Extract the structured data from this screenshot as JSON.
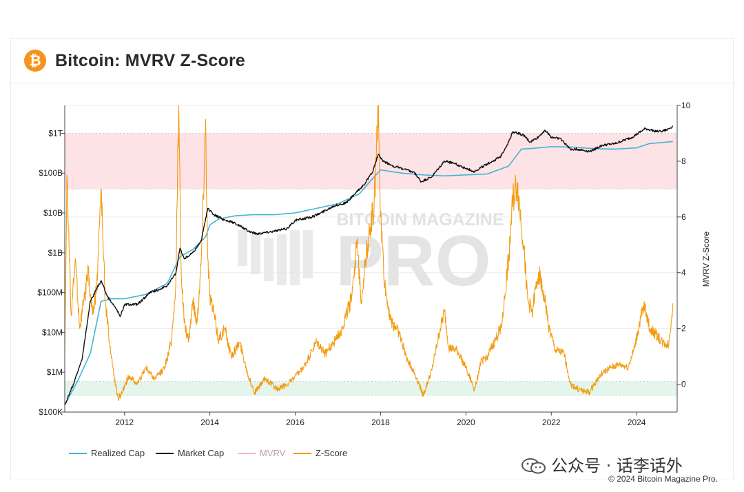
{
  "header": {
    "logo_glyph": "₿",
    "title": "Bitcoin: MVRV Z-Score"
  },
  "watermark": {
    "main": "BITCOIN MAGAZINE",
    "sub": "PRO",
    "social": "公众号 · 话李话外"
  },
  "copyright": "© 2024 Bitcoin Magazine Pro.",
  "colors": {
    "realized": "#3fb6d3",
    "market": "#111111",
    "mvrv": "#f4b6c2",
    "zscore": "#f39c12",
    "top_band": "#fde2e6",
    "bottom_band": "#e3f6ec",
    "accent": "#f7931a"
  },
  "chart_data": {
    "type": "line",
    "xlim": [
      2010.6,
      2024.95
    ],
    "x_ticks": [
      "2012",
      "2014",
      "2016",
      "2018",
      "2020",
      "2022",
      "2024"
    ],
    "left_axis": {
      "scale": "log",
      "ylim": [
        100000,
        5000000000000
      ],
      "ticks": [
        "$100K",
        "$1M",
        "$10M",
        "$100M",
        "$1B",
        "$10B",
        "$100B",
        "$1T"
      ]
    },
    "right_axis": {
      "ylabel": "MVRV Z-Score",
      "ylim": [
        -1,
        10
      ],
      "ticks": [
        "0",
        "2",
        "4",
        "6",
        "8",
        "10"
      ]
    },
    "bands": [
      {
        "name": "overvalued",
        "from": 7,
        "to": 9
      },
      {
        "name": "undervalued",
        "from": -0.4,
        "to": 0.1
      }
    ],
    "legend": [
      {
        "name": "Realized Cap",
        "key": "realized"
      },
      {
        "name": "Market Cap",
        "key": "market"
      },
      {
        "name": "MVRV",
        "key": "mvrv"
      },
      {
        "name": "Z-Score",
        "key": "zscore"
      }
    ],
    "series": [
      {
        "name": "Realized Cap",
        "axis": "left",
        "key": "realized",
        "x": [
          2010.6,
          2010.9,
          2011.2,
          2011.45,
          2011.7,
          2012.0,
          2012.5,
          2013.0,
          2013.3,
          2013.6,
          2013.9,
          2014.0,
          2014.2,
          2014.6,
          2015.0,
          2015.5,
          2016.0,
          2016.5,
          2017.0,
          2017.5,
          2017.8,
          2018.0,
          2018.5,
          2019.0,
          2019.5,
          2020.0,
          2020.5,
          2021.0,
          2021.3,
          2021.6,
          2022.0,
          2022.5,
          2023.0,
          2023.5,
          2024.0,
          2024.3,
          2024.85
        ],
        "y": [
          150000,
          600000,
          3000000,
          60000000,
          70000000,
          70000000,
          90000000,
          170000000,
          800000000,
          1200000000,
          2500000000,
          5000000000,
          7000000000,
          8500000000,
          9000000000,
          9000000000,
          10000000000,
          13000000000,
          17000000000,
          30000000000,
          70000000000,
          120000000000,
          100000000000,
          90000000000,
          85000000000,
          90000000000,
          95000000000,
          150000000000,
          400000000000,
          420000000000,
          460000000000,
          450000000000,
          410000000000,
          400000000000,
          430000000000,
          550000000000,
          620000000000
        ]
      },
      {
        "name": "Market Cap",
        "axis": "left",
        "key": "market",
        "x": [
          2010.6,
          2010.8,
          2011.0,
          2011.2,
          2011.45,
          2011.6,
          2011.8,
          2011.9,
          2012.0,
          2012.3,
          2012.6,
          2012.9,
          2013.0,
          2013.2,
          2013.3,
          2013.4,
          2013.6,
          2013.8,
          2013.95,
          2014.1,
          2014.3,
          2014.6,
          2014.9,
          2015.1,
          2015.5,
          2015.8,
          2016.0,
          2016.4,
          2016.6,
          2016.9,
          2017.2,
          2017.4,
          2017.6,
          2017.8,
          2017.95,
          2018.05,
          2018.3,
          2018.6,
          2018.8,
          2018.95,
          2019.2,
          2019.5,
          2019.7,
          2020.0,
          2020.2,
          2020.5,
          2020.8,
          2021.0,
          2021.1,
          2021.35,
          2021.5,
          2021.7,
          2021.85,
          2022.0,
          2022.2,
          2022.45,
          2022.6,
          2022.9,
          2023.2,
          2023.5,
          2023.9,
          2024.2,
          2024.5,
          2024.7,
          2024.85
        ],
        "y": [
          150000,
          500000,
          2000000,
          60000000,
          200000000,
          80000000,
          40000000,
          25000000,
          50000000,
          50000000,
          100000000,
          130000000,
          150000000,
          300000000,
          1300000000,
          700000000,
          1000000000,
          2000000000,
          13000000000,
          9000000000,
          7000000000,
          5500000000,
          3500000000,
          3000000000,
          3500000000,
          4000000000,
          6500000000,
          8000000000,
          10000000000,
          15000000000,
          18000000000,
          30000000000,
          50000000000,
          100000000000,
          300000000000,
          200000000000,
          150000000000,
          120000000000,
          100000000000,
          60000000000,
          80000000000,
          200000000000,
          180000000000,
          130000000000,
          110000000000,
          170000000000,
          250000000000,
          600000000000,
          1100000000000,
          900000000000,
          600000000000,
          800000000000,
          1200000000000,
          800000000000,
          750000000000,
          400000000000,
          400000000000,
          350000000000,
          500000000000,
          550000000000,
          800000000000,
          1300000000000,
          1100000000000,
          1200000000000,
          1500000000000
        ]
      },
      {
        "name": "Z-Score",
        "axis": "right",
        "key": "zscore",
        "x": [
          2010.6,
          2010.65,
          2010.75,
          2010.85,
          2010.95,
          2011.05,
          2011.15,
          2011.25,
          2011.35,
          2011.45,
          2011.55,
          2011.65,
          2011.75,
          2011.85,
          2011.95,
          2012.1,
          2012.3,
          2012.5,
          2012.7,
          2012.9,
          2013.0,
          2013.1,
          2013.2,
          2013.27,
          2013.33,
          2013.4,
          2013.5,
          2013.6,
          2013.7,
          2013.8,
          2013.9,
          2013.95,
          2014.0,
          2014.1,
          2014.2,
          2014.35,
          2014.5,
          2014.7,
          2014.9,
          2015.05,
          2015.3,
          2015.6,
          2015.9,
          2016.2,
          2016.5,
          2016.7,
          2016.9,
          2017.1,
          2017.3,
          2017.45,
          2017.55,
          2017.65,
          2017.75,
          2017.85,
          2017.95,
          2018.0,
          2018.1,
          2018.25,
          2018.4,
          2018.6,
          2018.85,
          2019.0,
          2019.2,
          2019.4,
          2019.5,
          2019.6,
          2019.8,
          2020.0,
          2020.2,
          2020.35,
          2020.5,
          2020.7,
          2020.85,
          2021.0,
          2021.1,
          2021.2,
          2021.35,
          2021.45,
          2021.55,
          2021.7,
          2021.85,
          2021.95,
          2022.1,
          2022.3,
          2022.45,
          2022.65,
          2022.9,
          2023.0,
          2023.2,
          2023.4,
          2023.6,
          2023.8,
          2023.95,
          2024.1,
          2024.2,
          2024.3,
          2024.45,
          2024.6,
          2024.75,
          2024.85
        ],
        "y": [
          1.0,
          7.5,
          2.5,
          4.5,
          2.0,
          3.0,
          4.0,
          2.5,
          3.5,
          7.0,
          3.0,
          1.5,
          0.3,
          -0.5,
          -0.3,
          0.3,
          0.0,
          0.6,
          0.2,
          0.5,
          0.9,
          1.6,
          3.5,
          10.0,
          4.0,
          2.2,
          1.5,
          3.0,
          2.2,
          4.5,
          9.5,
          4.5,
          3.2,
          2.5,
          1.6,
          2.0,
          1.0,
          1.5,
          0.3,
          -0.3,
          0.2,
          -0.2,
          0.1,
          0.6,
          1.5,
          1.1,
          1.5,
          2.0,
          3.0,
          5.0,
          3.0,
          4.5,
          5.5,
          6.5,
          10.0,
          6.0,
          3.5,
          2.2,
          2.0,
          1.0,
          0.2,
          -0.4,
          0.5,
          2.0,
          2.6,
          1.3,
          1.2,
          0.6,
          -0.2,
          0.8,
          1.0,
          1.6,
          2.2,
          4.5,
          6.6,
          7.2,
          5.0,
          3.0,
          2.6,
          4.0,
          3.0,
          2.0,
          1.2,
          1.1,
          0.0,
          -0.2,
          -0.3,
          0.0,
          0.4,
          0.6,
          0.7,
          0.6,
          1.3,
          2.4,
          2.8,
          2.0,
          1.8,
          1.5,
          1.4,
          2.9
        ]
      }
    ]
  }
}
